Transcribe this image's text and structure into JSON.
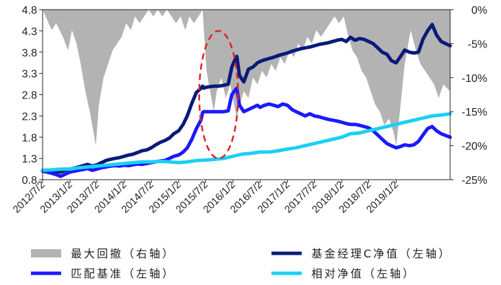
{
  "chart_data": {
    "type": "line",
    "title": "",
    "colors": {
      "drawdown": "#b3b3b3",
      "fund_c": "#0a1a7a",
      "benchmark": "#1a1aff",
      "relative": "#1ad0f5",
      "highlight": "#e02020"
    },
    "left_axis": {
      "ylim": [
        0.8,
        4.8
      ],
      "ticks": [
        "0.8",
        "1.3",
        "1.8",
        "2.3",
        "2.8",
        "3.3",
        "3.8",
        "4.3",
        "4.8"
      ]
    },
    "right_axis": {
      "ylim": [
        -25,
        0
      ],
      "ticks": [
        "0%",
        "-5%",
        "-10%",
        "-15%",
        "-20%",
        "-25%"
      ]
    },
    "x_range": [
      "2012-07-02",
      "2019-12-31"
    ],
    "x_ticks": [
      "2012/7/2",
      "2013/1/2",
      "2013/7/2",
      "2014/1/2",
      "2014/7/2",
      "2015/1/2",
      "2015/7/2",
      "2016/1/2",
      "2016/7/2",
      "2017/1/2",
      "2017/7/2",
      "2018/1/2",
      "2018/7/2",
      "2019/1/2"
    ],
    "series": [
      {
        "name": "最大回撤（右轴）",
        "axis": "right",
        "style": "area",
        "x": [
          "2012-07-02",
          "2012-08-01",
          "2012-09-01",
          "2012-10-01",
          "2012-11-15",
          "2012-12-20",
          "2013-01-15",
          "2013-02-15",
          "2013-03-15",
          "2013-04-15",
          "2013-05-15",
          "2013-06-25",
          "2013-07-15",
          "2013-08-15",
          "2013-09-15",
          "2013-10-15",
          "2013-11-15",
          "2013-12-15",
          "2014-01-15",
          "2014-02-15",
          "2014-03-15",
          "2014-04-15",
          "2014-05-15",
          "2014-06-15",
          "2014-07-15",
          "2014-08-15",
          "2014-09-15",
          "2014-10-15",
          "2014-11-15",
          "2014-12-15",
          "2015-01-15",
          "2015-02-15",
          "2015-03-15",
          "2015-04-15",
          "2015-05-15",
          "2015-06-12",
          "2015-06-20",
          "2015-07-08",
          "2015-08-01",
          "2015-08-26",
          "2015-09-15",
          "2015-10-15",
          "2015-11-15",
          "2015-12-15",
          "2016-01-28",
          "2016-02-15",
          "2016-03-15",
          "2016-04-15",
          "2016-05-15",
          "2016-06-15",
          "2016-07-15",
          "2016-08-15",
          "2016-09-15",
          "2016-10-15",
          "2016-11-15",
          "2016-12-15",
          "2017-01-15",
          "2017-02-15",
          "2017-03-15",
          "2017-04-15",
          "2017-05-15",
          "2017-06-15",
          "2017-07-15",
          "2017-08-15",
          "2017-09-15",
          "2017-10-15",
          "2017-11-15",
          "2017-12-15",
          "2018-01-15",
          "2018-02-15",
          "2018-03-15",
          "2018-04-15",
          "2018-05-15",
          "2018-06-15",
          "2018-07-15",
          "2018-08-15",
          "2018-09-15",
          "2018-10-15",
          "2018-11-15",
          "2018-12-15",
          "2019-01-03",
          "2019-02-01",
          "2019-03-01",
          "2019-04-10",
          "2019-05-15",
          "2019-06-15",
          "2019-07-15",
          "2019-08-15",
          "2019-09-15",
          "2019-10-15",
          "2019-11-15",
          "2019-12-31"
        ],
        "values": [
          0,
          -1.5,
          -3,
          -2,
          -4,
          -6,
          -3,
          -5,
          -8,
          -12,
          -15,
          -20,
          -14,
          -10,
          -8,
          -6,
          -5,
          -4,
          -2,
          -3,
          -1,
          -2,
          -1,
          0,
          -1,
          0,
          -1,
          0,
          -1,
          -2,
          -1,
          -3,
          -1,
          -2,
          -1,
          0,
          -3,
          -9,
          -12,
          -15,
          -12,
          -10,
          -13,
          -11,
          -16,
          -14,
          -12,
          -13,
          -10,
          -11,
          -9,
          -10,
          -8,
          -9,
          -7,
          -8,
          -6,
          -7,
          -5,
          -6,
          -4,
          -5,
          -3,
          -4,
          -3,
          -2,
          -1,
          -2,
          -1,
          -4,
          -6,
          -7,
          -9,
          -10,
          -12,
          -14,
          -15,
          -17,
          -16,
          -18,
          -20,
          -14,
          -8,
          -3,
          -6,
          -8,
          -9,
          -10,
          -11,
          -13,
          -11,
          -12
        ]
      },
      {
        "name": "基金经理C净值（左轴）",
        "axis": "left",
        "style": "line",
        "x": [
          "2012-07-02",
          "2012-08-01",
          "2012-09-01",
          "2012-10-01",
          "2012-11-01",
          "2012-12-01",
          "2013-01-02",
          "2013-02-01",
          "2013-03-01",
          "2013-04-01",
          "2013-05-01",
          "2013-06-01",
          "2013-07-02",
          "2013-08-01",
          "2013-09-01",
          "2013-10-01",
          "2013-11-01",
          "2013-12-01",
          "2014-01-02",
          "2014-02-01",
          "2014-03-01",
          "2014-04-01",
          "2014-05-01",
          "2014-06-01",
          "2014-07-02",
          "2014-08-01",
          "2014-09-01",
          "2014-10-01",
          "2014-11-01",
          "2014-12-01",
          "2015-01-02",
          "2015-02-01",
          "2015-03-01",
          "2015-04-01",
          "2015-05-01",
          "2015-06-01",
          "2015-06-12",
          "2015-06-20",
          "2015-07-01",
          "2015-08-01",
          "2015-09-01",
          "2015-10-01",
          "2015-11-01",
          "2015-12-01",
          "2015-12-25",
          "2016-01-15",
          "2016-01-28",
          "2016-02-15",
          "2016-03-15",
          "2016-04-15",
          "2016-05-15",
          "2016-06-15",
          "2016-07-02",
          "2016-08-01",
          "2016-09-01",
          "2016-10-01",
          "2016-11-01",
          "2016-12-01",
          "2017-01-02",
          "2017-02-01",
          "2017-03-01",
          "2017-04-01",
          "2017-05-01",
          "2017-06-01",
          "2017-07-02",
          "2017-08-01",
          "2017-09-01",
          "2017-10-01",
          "2017-11-01",
          "2017-12-01",
          "2018-01-02",
          "2018-02-01",
          "2018-03-01",
          "2018-04-01",
          "2018-05-01",
          "2018-06-01",
          "2018-07-02",
          "2018-08-01",
          "2018-09-01",
          "2018-10-01",
          "2018-11-01",
          "2018-12-01",
          "2019-01-02",
          "2019-02-01",
          "2019-03-01",
          "2019-04-01",
          "2019-05-01",
          "2019-06-01",
          "2019-07-01",
          "2019-08-01",
          "2019-09-01",
          "2019-10-01",
          "2019-11-01",
          "2019-12-31"
        ],
        "values": [
          1.02,
          1.01,
          1.0,
          0.99,
          0.98,
          1.02,
          1.05,
          1.07,
          1.1,
          1.13,
          1.16,
          1.12,
          1.15,
          1.2,
          1.25,
          1.28,
          1.3,
          1.32,
          1.35,
          1.38,
          1.4,
          1.44,
          1.48,
          1.5,
          1.55,
          1.62,
          1.68,
          1.72,
          1.78,
          1.88,
          1.95,
          2.1,
          2.3,
          2.6,
          2.85,
          2.95,
          3.0,
          2.95,
          2.97,
          2.99,
          3.0,
          3.0,
          3.02,
          3.05,
          3.45,
          3.62,
          3.7,
          3.25,
          3.1,
          3.4,
          3.45,
          3.55,
          3.58,
          3.62,
          3.65,
          3.68,
          3.72,
          3.75,
          3.78,
          3.82,
          3.85,
          3.88,
          3.9,
          3.92,
          3.95,
          3.98,
          4.0,
          4.02,
          4.05,
          4.08,
          4.1,
          4.05,
          4.15,
          4.08,
          4.12,
          4.1,
          4.05,
          4.0,
          3.9,
          3.8,
          3.75,
          3.6,
          3.55,
          3.7,
          3.85,
          3.8,
          3.78,
          3.8,
          4.1,
          4.3,
          4.45,
          4.2,
          4.05,
          3.95
        ]
      },
      {
        "name": "匹配基准（左轴）",
        "axis": "left",
        "style": "line",
        "x": [
          "2012-07-02",
          "2012-08-01",
          "2012-09-01",
          "2012-10-01",
          "2012-11-01",
          "2012-12-01",
          "2013-01-02",
          "2013-02-01",
          "2013-03-01",
          "2013-04-01",
          "2013-05-01",
          "2013-06-01",
          "2013-07-02",
          "2013-08-01",
          "2013-09-01",
          "2013-10-01",
          "2013-11-01",
          "2013-12-01",
          "2014-01-02",
          "2014-02-01",
          "2014-03-01",
          "2014-04-01",
          "2014-05-01",
          "2014-06-01",
          "2014-07-02",
          "2014-08-01",
          "2014-09-01",
          "2014-10-01",
          "2014-11-01",
          "2014-12-01",
          "2015-01-02",
          "2015-02-01",
          "2015-03-01",
          "2015-04-01",
          "2015-05-01",
          "2015-06-01",
          "2015-06-12",
          "2015-06-20",
          "2015-07-01",
          "2015-08-01",
          "2015-09-01",
          "2015-10-01",
          "2015-11-01",
          "2015-12-01",
          "2015-12-25",
          "2016-01-15",
          "2016-01-28",
          "2016-02-15",
          "2016-03-15",
          "2016-04-15",
          "2016-05-15",
          "2016-06-15",
          "2016-07-02",
          "2016-08-01",
          "2016-09-01",
          "2016-10-01",
          "2016-11-01",
          "2016-12-01",
          "2017-01-02",
          "2017-02-01",
          "2017-03-01",
          "2017-04-01",
          "2017-05-01",
          "2017-06-01",
          "2017-07-02",
          "2017-08-01",
          "2017-09-01",
          "2017-10-01",
          "2017-11-01",
          "2017-12-01",
          "2018-01-02",
          "2018-02-01",
          "2018-03-01",
          "2018-04-01",
          "2018-05-01",
          "2018-06-01",
          "2018-07-02",
          "2018-08-01",
          "2018-09-01",
          "2018-10-01",
          "2018-11-01",
          "2018-12-01",
          "2019-01-02",
          "2019-02-01",
          "2019-03-01",
          "2019-04-01",
          "2019-05-01",
          "2019-06-01",
          "2019-07-01",
          "2019-08-01",
          "2019-09-01",
          "2019-10-01",
          "2019-11-01",
          "2019-12-31"
        ],
        "values": [
          1.0,
          0.98,
          0.95,
          0.92,
          0.88,
          0.93,
          0.98,
          1.0,
          1.02,
          1.04,
          1.06,
          1.02,
          1.05,
          1.08,
          1.1,
          1.12,
          1.13,
          1.12,
          1.14,
          1.13,
          1.15,
          1.17,
          1.16,
          1.18,
          1.2,
          1.22,
          1.24,
          1.25,
          1.3,
          1.35,
          1.38,
          1.45,
          1.55,
          1.75,
          2.0,
          2.2,
          2.38,
          2.4,
          2.4,
          2.4,
          2.4,
          2.4,
          2.4,
          2.42,
          2.8,
          2.9,
          2.95,
          2.55,
          2.4,
          2.45,
          2.5,
          2.55,
          2.5,
          2.55,
          2.58,
          2.55,
          2.52,
          2.58,
          2.55,
          2.45,
          2.4,
          2.35,
          2.3,
          2.35,
          2.3,
          2.28,
          2.25,
          2.22,
          2.2,
          2.18,
          2.15,
          2.12,
          2.1,
          2.1,
          2.08,
          2.05,
          2.02,
          1.95,
          1.85,
          1.75,
          1.65,
          1.6,
          1.55,
          1.58,
          1.62,
          1.6,
          1.62,
          1.7,
          1.85,
          2.0,
          2.05,
          1.95,
          1.88,
          1.8
        ]
      },
      {
        "name": "相对净值（左轴）",
        "axis": "left",
        "style": "line",
        "x": [
          "2012-07-02",
          "2012-09-01",
          "2012-11-01",
          "2013-01-02",
          "2013-03-01",
          "2013-05-01",
          "2013-07-02",
          "2013-09-01",
          "2013-11-01",
          "2014-01-02",
          "2014-03-01",
          "2014-05-01",
          "2014-07-02",
          "2014-09-01",
          "2014-11-01",
          "2015-01-02",
          "2015-03-01",
          "2015-05-01",
          "2015-07-01",
          "2015-09-01",
          "2015-11-01",
          "2016-01-02",
          "2016-03-01",
          "2016-05-01",
          "2016-07-02",
          "2016-09-01",
          "2016-11-01",
          "2017-01-02",
          "2017-03-01",
          "2017-05-01",
          "2017-07-02",
          "2017-09-01",
          "2017-11-01",
          "2018-01-02",
          "2018-03-01",
          "2018-05-01",
          "2018-07-02",
          "2018-09-01",
          "2018-11-01",
          "2019-01-02",
          "2019-03-01",
          "2019-05-01",
          "2019-07-01",
          "2019-09-01",
          "2019-11-01",
          "2019-12-31"
        ],
        "values": [
          1.02,
          1.03,
          1.05,
          1.05,
          1.08,
          1.1,
          1.12,
          1.14,
          1.16,
          1.18,
          1.2,
          1.22,
          1.22,
          1.23,
          1.22,
          1.2,
          1.22,
          1.25,
          1.26,
          1.28,
          1.3,
          1.35,
          1.4,
          1.42,
          1.45,
          1.45,
          1.48,
          1.52,
          1.55,
          1.6,
          1.65,
          1.7,
          1.75,
          1.8,
          1.88,
          1.9,
          1.95,
          2.0,
          2.05,
          2.1,
          2.15,
          2.2,
          2.25,
          2.3,
          2.32,
          2.35
        ]
      }
    ],
    "annotation": {
      "type": "dashed-ellipse",
      "x_range": [
        "2015-05-20",
        "2016-02-05"
      ],
      "y_range": [
        1.3,
        4.3
      ],
      "color": "#e02020"
    }
  }
}
